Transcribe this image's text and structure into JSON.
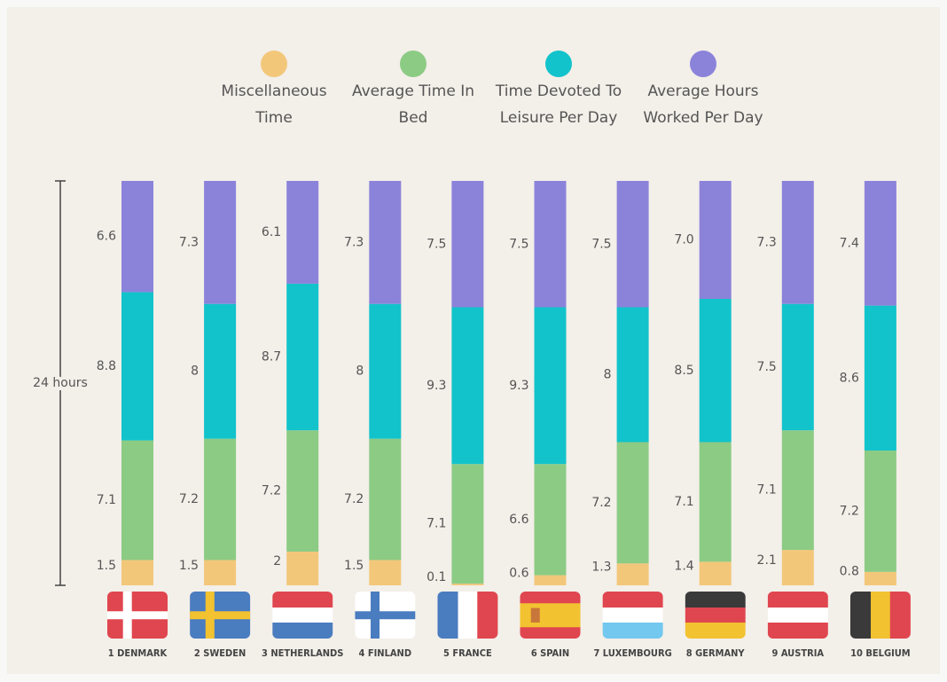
{
  "chart_data": {
    "type": "stacked_bar",
    "annotation": "24 hours",
    "categories": [
      "1 DENMARK",
      "2 SWEDEN",
      "3 NETHERLANDS",
      "4 FINLAND",
      "5 FRANCE",
      "6 SPAIN",
      "7 LUXEMBOURG",
      "8 GERMANY",
      "9 AUSTRIA",
      "10 BELGIUM"
    ],
    "ylim": [
      0,
      24
    ],
    "series": [
      {
        "name": "Miscellaneous Time",
        "color": "#f3c77a",
        "values": [
          1.5,
          1.5,
          2,
          1.5,
          0.1,
          0.6,
          1.3,
          1.4,
          2.1,
          0.8
        ]
      },
      {
        "name": "Average Time In Bed",
        "color": "#8ccb84",
        "values": [
          7.1,
          7.2,
          7.2,
          7.2,
          7.1,
          6.6,
          7.2,
          7.1,
          7.1,
          7.2
        ]
      },
      {
        "name": "Time Devoted To Leisure Per Day",
        "color": "#12c3cb",
        "values": [
          8.8,
          8,
          8.7,
          8,
          9.3,
          9.3,
          8,
          8.5,
          7.5,
          8.6
        ]
      },
      {
        "name": "Average Hours Worked Per Day",
        "color": "#8b83da",
        "values": [
          6.6,
          7.3,
          6.1,
          7.3,
          7.5,
          7.5,
          7.5,
          7.0,
          7.3,
          7.4
        ],
        "value_labels": [
          "6.6",
          "7.3",
          "6.1",
          "7.3",
          "7.5",
          "7.5",
          "7.5",
          "7.0",
          "7.3",
          "7.4"
        ]
      }
    ]
  }
}
